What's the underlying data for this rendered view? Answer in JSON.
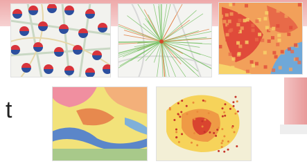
{
  "fragment_text": "t"
}
